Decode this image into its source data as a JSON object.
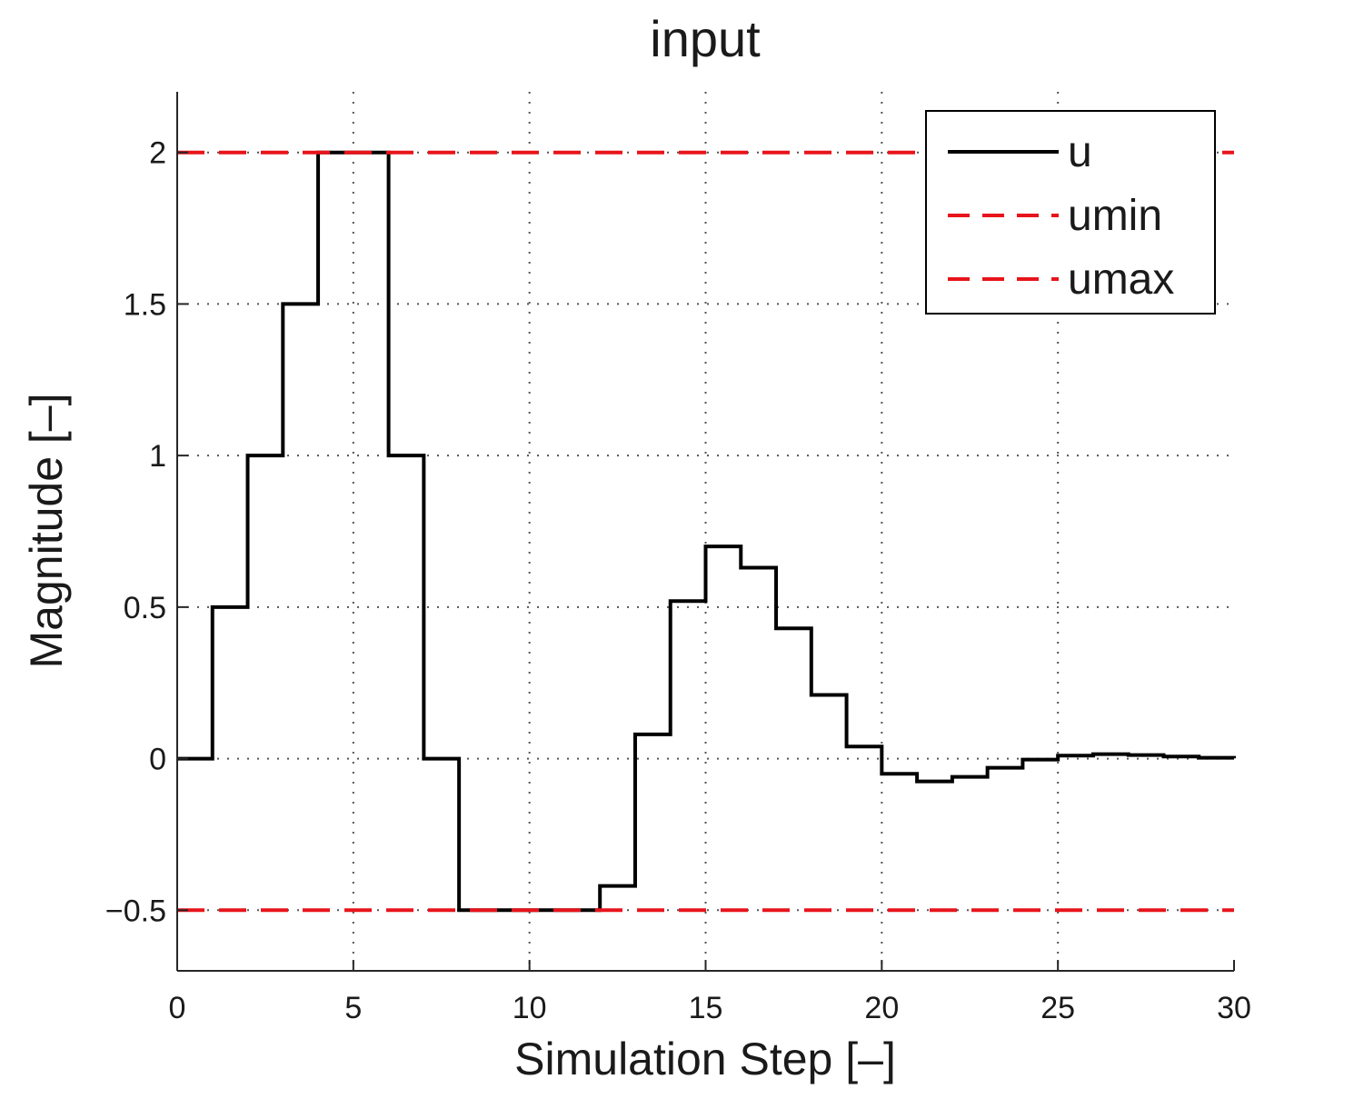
{
  "chart_data": {
    "type": "line",
    "title": "input",
    "xlabel": "Simulation Step [–]",
    "ylabel": "Magnitude [–]",
    "xlim": [
      0,
      30
    ],
    "ylim": [
      -0.7,
      2.2
    ],
    "xticks": [
      0,
      5,
      10,
      15,
      20,
      25,
      30
    ],
    "xtick_labels": [
      "0",
      "5",
      "10",
      "15",
      "20",
      "25",
      "30"
    ],
    "yticks": [
      -0.5,
      0,
      0.5,
      1,
      1.5,
      2
    ],
    "ytick_labels": [
      "−0.5",
      "0",
      "0.5",
      "1",
      "1.5",
      "2"
    ],
    "grid": true,
    "legend_position": "top-right",
    "series": [
      {
        "name": "u",
        "style": "stairs",
        "color": "#000000",
        "x": [
          0,
          1,
          2,
          3,
          4,
          5,
          6,
          7,
          8,
          9,
          10,
          11,
          12,
          13,
          14,
          15,
          16,
          17,
          18,
          19,
          20,
          21,
          22,
          23,
          24,
          25,
          26,
          27,
          28,
          29,
          30
        ],
        "y": [
          0,
          0.5,
          1.0,
          1.5,
          2.0,
          2.0,
          1.0,
          0.0,
          -0.5,
          -0.5,
          -0.5,
          -0.5,
          -0.42,
          0.08,
          0.52,
          0.7,
          0.63,
          0.43,
          0.21,
          0.04,
          -0.05,
          -0.075,
          -0.06,
          -0.03,
          -0.003,
          0.01,
          0.015,
          0.012,
          0.007,
          0.003,
          0.001
        ]
      },
      {
        "name": "umin",
        "style": "dashed",
        "color": "#e8141b",
        "x": [
          0,
          30
        ],
        "y": [
          -0.5,
          -0.5
        ]
      },
      {
        "name": "umax",
        "style": "dashed",
        "color": "#e8141b",
        "x": [
          0,
          30
        ],
        "y": [
          2,
          2
        ]
      }
    ]
  }
}
